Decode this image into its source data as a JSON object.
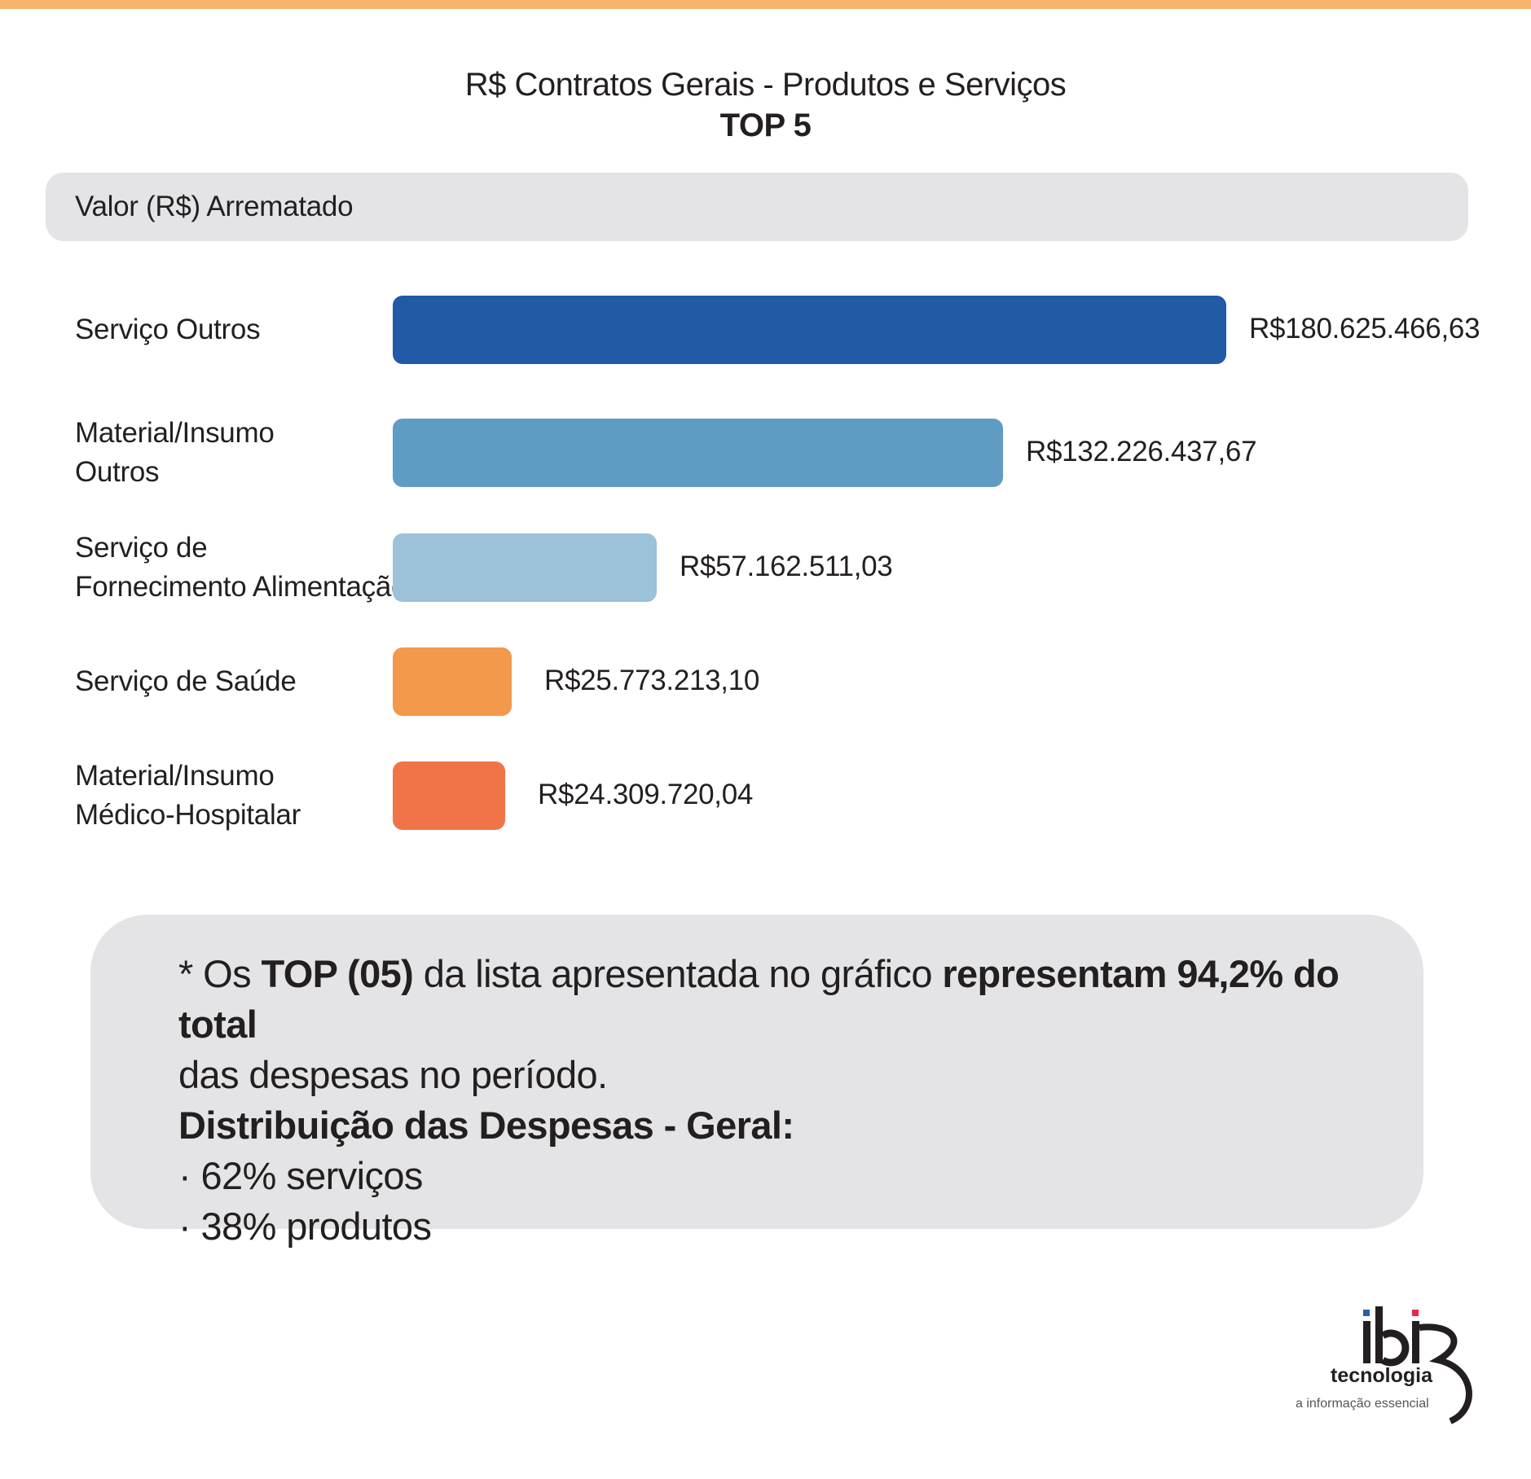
{
  "page": {
    "title": "R$ Contratos Gerais - Produtos e Serviços",
    "subtitle": "TOP 5",
    "header_label": "Valor (R$) Arrematado"
  },
  "chart_data": {
    "type": "bar",
    "orientation": "horizontal",
    "title": "R$ Contratos Gerais - Produtos e Serviços",
    "subtitle": "TOP 5",
    "ylabel": "Valor (R$) Arrematado",
    "categories": [
      [
        "Serviço Outros"
      ],
      [
        "Material/Insumo",
        "Outros"
      ],
      [
        "Serviço de",
        "Fornecimento Alimentação"
      ],
      [
        "Serviço de Saúde"
      ],
      [
        "Material/Insumo",
        "Médico-Hospitalar"
      ]
    ],
    "values": [
      180625466.63,
      132226437.67,
      57162511.03,
      25773213.1,
      24309720.04
    ],
    "value_labels": [
      "R$180.625.466,63",
      "R$132.226.437,67",
      "R$57.162.511,03",
      "R$25.773.213,10",
      "R$24.309.720,04"
    ],
    "colors": [
      "#215aa5",
      "#5f9cc3",
      "#9cc1d8",
      "#f3994b",
      "#f07447"
    ],
    "xlim": [
      0,
      180625466.63
    ],
    "grid": false,
    "legend": "none"
  },
  "note": {
    "line1": {
      "pre": "* Os ",
      "bold1": "TOP (05)",
      "mid": " da lista apresentada no gráfico ",
      "bold2": "representam 94,2% do total"
    },
    "line2": "das despesas no período.",
    "heading": "Distribuição das Despesas - Geral:",
    "items": [
      "· 62% serviços",
      "· 38% produtos"
    ]
  },
  "logo": {
    "brand": "ibr",
    "name": "tecnologia",
    "tagline": "a informação essencial",
    "colors": [
      "#2a5ea8",
      "#e8294c",
      "#231f20"
    ]
  }
}
